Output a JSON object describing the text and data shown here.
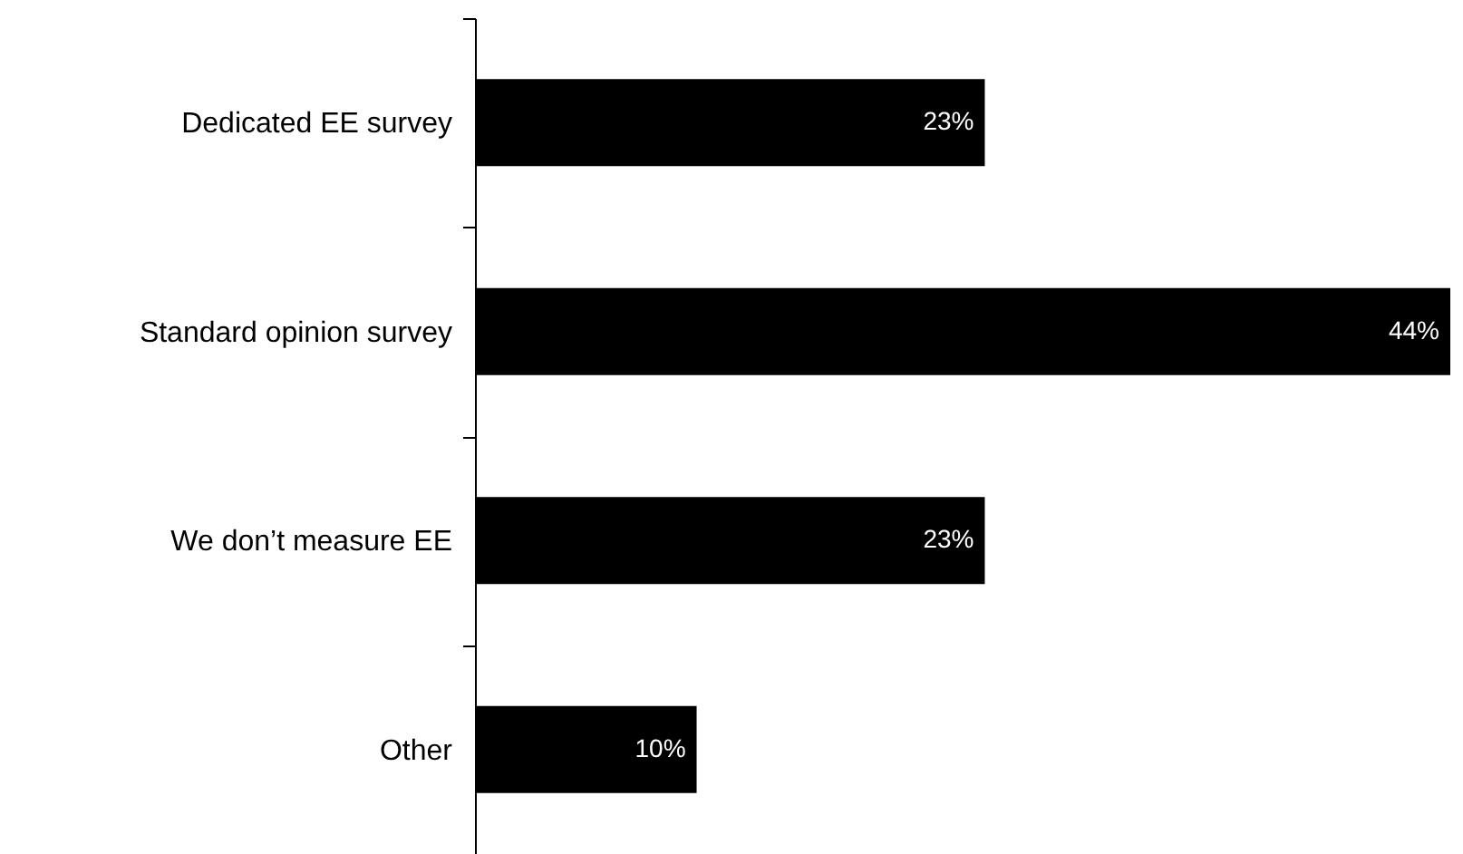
{
  "chart_data": {
    "type": "bar",
    "orientation": "horizontal",
    "categories": [
      "Dedicated EE survey",
      "Standard opinion survey",
      "We don’t measure EE",
      "Other"
    ],
    "values": [
      23,
      44,
      23,
      10
    ],
    "color": "#000000",
    "value_labels": [
      "23%",
      "44%",
      "23%",
      "10%"
    ]
  }
}
